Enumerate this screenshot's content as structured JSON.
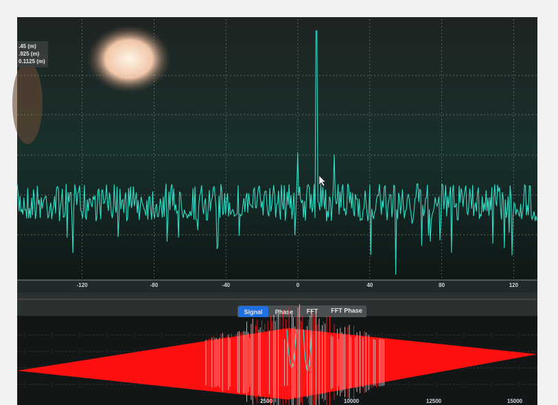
{
  "readout": [
    ".45 (m)",
    ".925 (m)",
    "0.1125 (m)"
  ],
  "top_plot": {
    "xticks": [
      -120,
      -80,
      -40,
      0,
      40,
      80,
      120
    ]
  },
  "tabs": [
    "Signal",
    "Phase",
    "FFT",
    "FFT Phase"
  ],
  "bottom_plot": {
    "xticks": [
      2500,
      10000,
      12500,
      15000
    ]
  }
}
